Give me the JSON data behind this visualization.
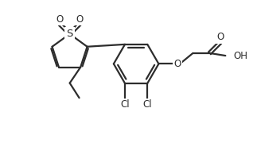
{
  "bg_color": "#ffffff",
  "line_color": "#2d2d2d",
  "line_width": 1.6,
  "font_size": 8.5,
  "figsize": [
    3.23,
    1.8
  ],
  "dpi": 100,
  "xlim": [
    0,
    10
  ],
  "ylim": [
    0,
    5.6
  ]
}
